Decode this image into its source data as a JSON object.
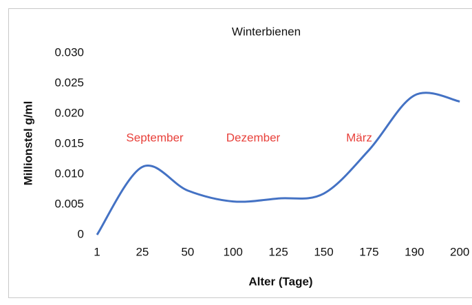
{
  "chart_data": {
    "type": "line",
    "title": "Winterbienen",
    "x_label": "Alter (Tage)",
    "y_label": "Millionstel g/ml",
    "categories": [
      "1",
      "25",
      "50",
      "100",
      "125",
      "150",
      "175",
      "190",
      "200"
    ],
    "series": [
      {
        "color": "#4472c4",
        "values": [
          0,
          0.0112,
          0.0073,
          0.0055,
          0.006,
          0.0068,
          0.014,
          0.023,
          0.022
        ]
      }
    ],
    "ylim": [
      0,
      0.03
    ],
    "yticks": [
      0,
      0.005,
      {
        "value": 0.01,
        "label": "0.010"
      },
      0.015,
      {
        "value": 0.02,
        "label": "0.020"
      },
      0.025,
      {
        "value": 0.03,
        "label": "0.030"
      }
    ],
    "annotations": [
      "September",
      "Dezember",
      "März"
    ],
    "annotation_color": "#e8403a",
    "grid": false
  }
}
